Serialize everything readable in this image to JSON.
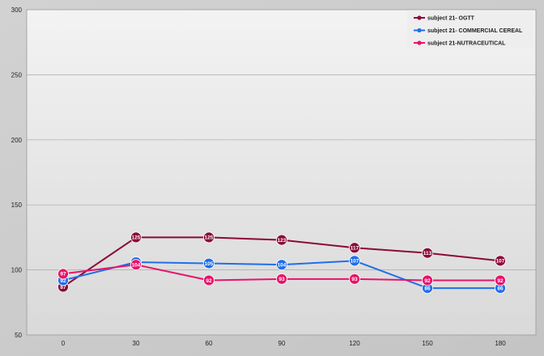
{
  "chart_data": {
    "type": "line",
    "title": "",
    "xlabel": "",
    "ylabel": "",
    "x": [
      0,
      30,
      60,
      90,
      120,
      150,
      180
    ],
    "x_tick_labels": [
      "0",
      "30",
      "60",
      "90",
      "120",
      "150",
      "180"
    ],
    "ylim": [
      50,
      300
    ],
    "y_ticks": [
      50,
      100,
      150,
      200,
      250,
      300
    ],
    "y_tick_labels": [
      "50",
      "100",
      "150",
      "200",
      "250",
      "300"
    ],
    "grid": "horizontal",
    "legend_position": "top-right",
    "series": [
      {
        "name": "subject 21- OGTT",
        "color": "#8b0a3a",
        "values": [
          87,
          125,
          125,
          123,
          117,
          113,
          107
        ],
        "labels": [
          "87",
          "125",
          "125",
          "123",
          "117",
          "113",
          "107"
        ]
      },
      {
        "name": "subject 21- COMMERCIAL CEREAL",
        "color": "#1f6fe8",
        "values": [
          92,
          106,
          105,
          104,
          107,
          86,
          86
        ],
        "labels": [
          "92",
          "106",
          "105",
          "104",
          "107",
          "86",
          "86"
        ]
      },
      {
        "name": "subject 21-NUTRACEUTICAL",
        "color": "#e8136b",
        "values": [
          97,
          104,
          92,
          93,
          93,
          92,
          92
        ],
        "labels": [
          "97",
          "104",
          "92",
          "93",
          "93",
          "92",
          "92"
        ]
      }
    ]
  }
}
